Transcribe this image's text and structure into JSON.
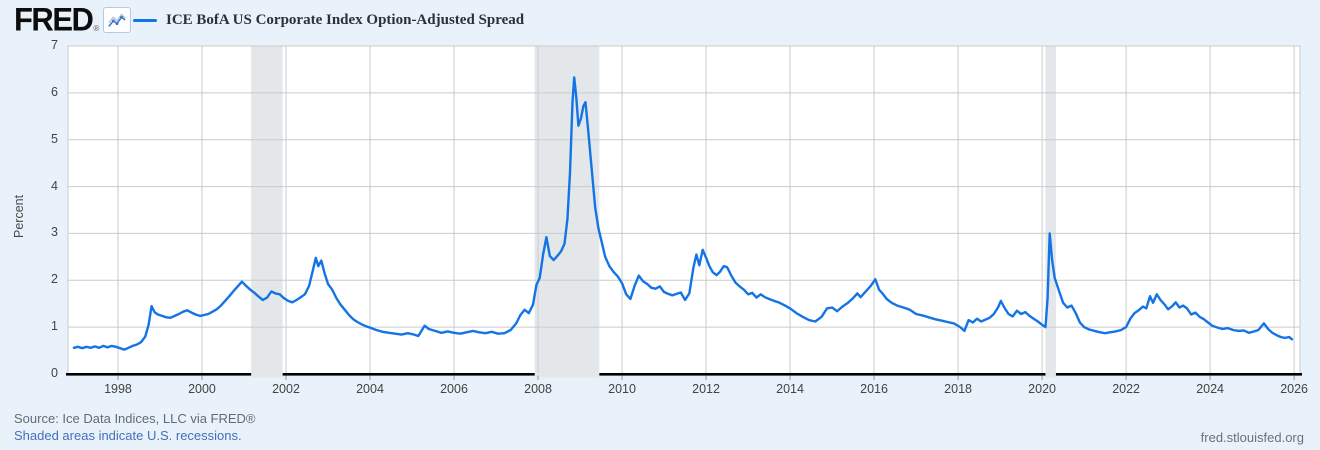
{
  "header": {
    "logo_text": "FRED",
    "registered_mark": "®",
    "series_label": "ICE BofA US Corporate Index Option-Adjusted Spread"
  },
  "footer": {
    "source": "Source: Ice Data Indices, LLC via FRED®",
    "recession_note": "Shaded areas indicate U.S. recessions.",
    "site": "fred.stlouisfed.org"
  },
  "colors": {
    "background": "#e9f1fb",
    "plot_background": "#ffffff",
    "grid": "#cbcbcb",
    "spine": "#c6cdd4",
    "axis": "#000000",
    "tick": "#999999",
    "recession_band": "#e3e7ea",
    "line": "#1474e6",
    "link": "#4272b8",
    "icon_line_light": "#aac6e8",
    "icon_line_dark": "#3d76bf"
  },
  "chart_data": {
    "type": "line",
    "title": "ICE BofA US Corporate Index Option-Adjusted Spread",
    "xlabel": "",
    "ylabel": "Percent",
    "ylim": [
      0,
      7
    ],
    "xlim": [
      1996.81,
      2026.14
    ],
    "grid": true,
    "legend_position": "top-left-header",
    "y_ticks": [
      0,
      1,
      2,
      3,
      4,
      5,
      6,
      7
    ],
    "x_ticks": [
      1998,
      2000,
      2002,
      2004,
      2006,
      2008,
      2010,
      2012,
      2014,
      2016,
      2018,
      2020,
      2022,
      2024,
      2026
    ],
    "recession_bands": [
      [
        2001.17,
        2001.92
      ],
      [
        2007.92,
        2009.46
      ],
      [
        2020.08,
        2020.33
      ]
    ],
    "series": [
      {
        "name": "ICE BofA US Corporate Index Option-Adjusted Spread",
        "color": "#1474e6",
        "points": [
          [
            1996.95,
            0.56
          ],
          [
            1997.05,
            0.58
          ],
          [
            1997.15,
            0.55
          ],
          [
            1997.25,
            0.58
          ],
          [
            1997.35,
            0.56
          ],
          [
            1997.45,
            0.59
          ],
          [
            1997.55,
            0.56
          ],
          [
            1997.65,
            0.6
          ],
          [
            1997.75,
            0.57
          ],
          [
            1997.85,
            0.6
          ],
          [
            1997.95,
            0.58
          ],
          [
            1998.05,
            0.55
          ],
          [
            1998.15,
            0.52
          ],
          [
            1998.25,
            0.56
          ],
          [
            1998.35,
            0.6
          ],
          [
            1998.45,
            0.63
          ],
          [
            1998.55,
            0.68
          ],
          [
            1998.65,
            0.8
          ],
          [
            1998.73,
            1.05
          ],
          [
            1998.8,
            1.45
          ],
          [
            1998.87,
            1.32
          ],
          [
            1998.95,
            1.27
          ],
          [
            1999.05,
            1.24
          ],
          [
            1999.15,
            1.21
          ],
          [
            1999.25,
            1.2
          ],
          [
            1999.35,
            1.24
          ],
          [
            1999.45,
            1.28
          ],
          [
            1999.55,
            1.33
          ],
          [
            1999.65,
            1.36
          ],
          [
            1999.75,
            1.31
          ],
          [
            1999.85,
            1.27
          ],
          [
            1999.95,
            1.24
          ],
          [
            2000.05,
            1.26
          ],
          [
            2000.15,
            1.28
          ],
          [
            2000.25,
            1.33
          ],
          [
            2000.35,
            1.38
          ],
          [
            2000.45,
            1.46
          ],
          [
            2000.55,
            1.56
          ],
          [
            2000.65,
            1.66
          ],
          [
            2000.75,
            1.77
          ],
          [
            2000.85,
            1.87
          ],
          [
            2000.95,
            1.97
          ],
          [
            2001.05,
            1.88
          ],
          [
            2001.15,
            1.8
          ],
          [
            2001.25,
            1.73
          ],
          [
            2001.35,
            1.65
          ],
          [
            2001.45,
            1.58
          ],
          [
            2001.55,
            1.63
          ],
          [
            2001.65,
            1.76
          ],
          [
            2001.75,
            1.72
          ],
          [
            2001.85,
            1.7
          ],
          [
            2001.95,
            1.62
          ],
          [
            2002.05,
            1.56
          ],
          [
            2002.15,
            1.53
          ],
          [
            2002.25,
            1.58
          ],
          [
            2002.35,
            1.64
          ],
          [
            2002.45,
            1.7
          ],
          [
            2002.55,
            1.88
          ],
          [
            2002.63,
            2.18
          ],
          [
            2002.71,
            2.48
          ],
          [
            2002.77,
            2.3
          ],
          [
            2002.84,
            2.42
          ],
          [
            2002.92,
            2.15
          ],
          [
            2003,
            1.92
          ],
          [
            2003.1,
            1.8
          ],
          [
            2003.2,
            1.62
          ],
          [
            2003.3,
            1.48
          ],
          [
            2003.4,
            1.37
          ],
          [
            2003.5,
            1.26
          ],
          [
            2003.6,
            1.17
          ],
          [
            2003.7,
            1.11
          ],
          [
            2003.8,
            1.06
          ],
          [
            2003.9,
            1.02
          ],
          [
            2004,
            0.99
          ],
          [
            2004.15,
            0.94
          ],
          [
            2004.3,
            0.9
          ],
          [
            2004.45,
            0.88
          ],
          [
            2004.6,
            0.86
          ],
          [
            2004.75,
            0.84
          ],
          [
            2004.9,
            0.87
          ],
          [
            2005.05,
            0.84
          ],
          [
            2005.15,
            0.81
          ],
          [
            2005.3,
            1.03
          ],
          [
            2005.4,
            0.96
          ],
          [
            2005.55,
            0.92
          ],
          [
            2005.7,
            0.88
          ],
          [
            2005.85,
            0.91
          ],
          [
            2006,
            0.88
          ],
          [
            2006.15,
            0.86
          ],
          [
            2006.3,
            0.89
          ],
          [
            2006.45,
            0.92
          ],
          [
            2006.6,
            0.89
          ],
          [
            2006.75,
            0.87
          ],
          [
            2006.9,
            0.9
          ],
          [
            2007.05,
            0.86
          ],
          [
            2007.2,
            0.87
          ],
          [
            2007.35,
            0.94
          ],
          [
            2007.48,
            1.08
          ],
          [
            2007.58,
            1.26
          ],
          [
            2007.68,
            1.37
          ],
          [
            2007.78,
            1.3
          ],
          [
            2007.88,
            1.48
          ],
          [
            2007.96,
            1.9
          ],
          [
            2008.04,
            2.05
          ],
          [
            2008.12,
            2.55
          ],
          [
            2008.2,
            2.92
          ],
          [
            2008.28,
            2.52
          ],
          [
            2008.37,
            2.43
          ],
          [
            2008.46,
            2.52
          ],
          [
            2008.55,
            2.62
          ],
          [
            2008.63,
            2.78
          ],
          [
            2008.7,
            3.3
          ],
          [
            2008.76,
            4.3
          ],
          [
            2008.82,
            5.8
          ],
          [
            2008.86,
            6.33
          ],
          [
            2008.91,
            5.9
          ],
          [
            2008.96,
            5.3
          ],
          [
            2009.02,
            5.45
          ],
          [
            2009.08,
            5.72
          ],
          [
            2009.13,
            5.8
          ],
          [
            2009.2,
            5.15
          ],
          [
            2009.28,
            4.35
          ],
          [
            2009.36,
            3.55
          ],
          [
            2009.44,
            3.1
          ],
          [
            2009.52,
            2.8
          ],
          [
            2009.6,
            2.5
          ],
          [
            2009.7,
            2.3
          ],
          [
            2009.8,
            2.18
          ],
          [
            2009.9,
            2.08
          ],
          [
            2010,
            1.94
          ],
          [
            2010.1,
            1.7
          ],
          [
            2010.2,
            1.6
          ],
          [
            2010.3,
            1.88
          ],
          [
            2010.4,
            2.1
          ],
          [
            2010.5,
            1.98
          ],
          [
            2010.6,
            1.92
          ],
          [
            2010.7,
            1.84
          ],
          [
            2010.8,
            1.82
          ],
          [
            2010.9,
            1.87
          ],
          [
            2011,
            1.75
          ],
          [
            2011.1,
            1.71
          ],
          [
            2011.2,
            1.68
          ],
          [
            2011.3,
            1.71
          ],
          [
            2011.4,
            1.74
          ],
          [
            2011.5,
            1.58
          ],
          [
            2011.6,
            1.72
          ],
          [
            2011.7,
            2.28
          ],
          [
            2011.77,
            2.55
          ],
          [
            2011.84,
            2.32
          ],
          [
            2011.92,
            2.65
          ],
          [
            2012,
            2.48
          ],
          [
            2012.08,
            2.3
          ],
          [
            2012.16,
            2.17
          ],
          [
            2012.25,
            2.11
          ],
          [
            2012.33,
            2.18
          ],
          [
            2012.42,
            2.3
          ],
          [
            2012.5,
            2.28
          ],
          [
            2012.6,
            2.1
          ],
          [
            2012.7,
            1.95
          ],
          [
            2012.8,
            1.87
          ],
          [
            2012.9,
            1.8
          ],
          [
            2013,
            1.7
          ],
          [
            2013.1,
            1.73
          ],
          [
            2013.2,
            1.63
          ],
          [
            2013.3,
            1.7
          ],
          [
            2013.4,
            1.64
          ],
          [
            2013.5,
            1.6
          ],
          [
            2013.62,
            1.56
          ],
          [
            2013.75,
            1.52
          ],
          [
            2013.88,
            1.46
          ],
          [
            2014,
            1.4
          ],
          [
            2014.15,
            1.3
          ],
          [
            2014.3,
            1.22
          ],
          [
            2014.45,
            1.15
          ],
          [
            2014.6,
            1.12
          ],
          [
            2014.75,
            1.22
          ],
          [
            2014.88,
            1.4
          ],
          [
            2015,
            1.42
          ],
          [
            2015.12,
            1.34
          ],
          [
            2015.25,
            1.44
          ],
          [
            2015.38,
            1.52
          ],
          [
            2015.5,
            1.62
          ],
          [
            2015.6,
            1.72
          ],
          [
            2015.68,
            1.64
          ],
          [
            2015.8,
            1.76
          ],
          [
            2015.92,
            1.88
          ],
          [
            2016.03,
            2.02
          ],
          [
            2016.12,
            1.8
          ],
          [
            2016.2,
            1.72
          ],
          [
            2016.3,
            1.6
          ],
          [
            2016.42,
            1.52
          ],
          [
            2016.55,
            1.46
          ],
          [
            2016.7,
            1.42
          ],
          [
            2016.85,
            1.37
          ],
          [
            2017,
            1.28
          ],
          [
            2017.15,
            1.25
          ],
          [
            2017.3,
            1.21
          ],
          [
            2017.45,
            1.17
          ],
          [
            2017.6,
            1.14
          ],
          [
            2017.75,
            1.11
          ],
          [
            2017.9,
            1.08
          ],
          [
            2018.05,
            1
          ],
          [
            2018.15,
            0.92
          ],
          [
            2018.25,
            1.15
          ],
          [
            2018.35,
            1.1
          ],
          [
            2018.45,
            1.18
          ],
          [
            2018.55,
            1.12
          ],
          [
            2018.65,
            1.16
          ],
          [
            2018.75,
            1.2
          ],
          [
            2018.85,
            1.28
          ],
          [
            2018.95,
            1.42
          ],
          [
            2019.02,
            1.56
          ],
          [
            2019.1,
            1.42
          ],
          [
            2019.2,
            1.28
          ],
          [
            2019.3,
            1.23
          ],
          [
            2019.4,
            1.35
          ],
          [
            2019.5,
            1.28
          ],
          [
            2019.6,
            1.32
          ],
          [
            2019.7,
            1.24
          ],
          [
            2019.8,
            1.18
          ],
          [
            2019.9,
            1.12
          ],
          [
            2020,
            1.05
          ],
          [
            2020.08,
            1
          ],
          [
            2020.13,
            1.62
          ],
          [
            2020.18,
            3
          ],
          [
            2020.24,
            2.42
          ],
          [
            2020.3,
            2.05
          ],
          [
            2020.4,
            1.78
          ],
          [
            2020.5,
            1.52
          ],
          [
            2020.6,
            1.42
          ],
          [
            2020.7,
            1.46
          ],
          [
            2020.8,
            1.3
          ],
          [
            2020.9,
            1.1
          ],
          [
            2021,
            1
          ],
          [
            2021.12,
            0.95
          ],
          [
            2021.25,
            0.92
          ],
          [
            2021.38,
            0.89
          ],
          [
            2021.5,
            0.87
          ],
          [
            2021.62,
            0.89
          ],
          [
            2021.75,
            0.91
          ],
          [
            2021.88,
            0.94
          ],
          [
            2022,
            1
          ],
          [
            2022.1,
            1.18
          ],
          [
            2022.2,
            1.3
          ],
          [
            2022.3,
            1.36
          ],
          [
            2022.4,
            1.44
          ],
          [
            2022.48,
            1.4
          ],
          [
            2022.57,
            1.66
          ],
          [
            2022.64,
            1.52
          ],
          [
            2022.73,
            1.7
          ],
          [
            2022.82,
            1.58
          ],
          [
            2022.92,
            1.48
          ],
          [
            2023,
            1.38
          ],
          [
            2023.1,
            1.45
          ],
          [
            2023.18,
            1.53
          ],
          [
            2023.27,
            1.42
          ],
          [
            2023.36,
            1.46
          ],
          [
            2023.45,
            1.4
          ],
          [
            2023.55,
            1.27
          ],
          [
            2023.65,
            1.31
          ],
          [
            2023.75,
            1.22
          ],
          [
            2023.85,
            1.17
          ],
          [
            2023.95,
            1.1
          ],
          [
            2024.05,
            1.03
          ],
          [
            2024.18,
            0.99
          ],
          [
            2024.3,
            0.96
          ],
          [
            2024.42,
            0.98
          ],
          [
            2024.55,
            0.94
          ],
          [
            2024.68,
            0.92
          ],
          [
            2024.8,
            0.93
          ],
          [
            2024.92,
            0.88
          ],
          [
            2025.05,
            0.91
          ],
          [
            2025.15,
            0.94
          ],
          [
            2025.28,
            1.08
          ],
          [
            2025.38,
            0.96
          ],
          [
            2025.48,
            0.88
          ],
          [
            2025.58,
            0.83
          ],
          [
            2025.68,
            0.79
          ],
          [
            2025.78,
            0.77
          ],
          [
            2025.88,
            0.79
          ],
          [
            2025.95,
            0.74
          ]
        ]
      }
    ]
  }
}
